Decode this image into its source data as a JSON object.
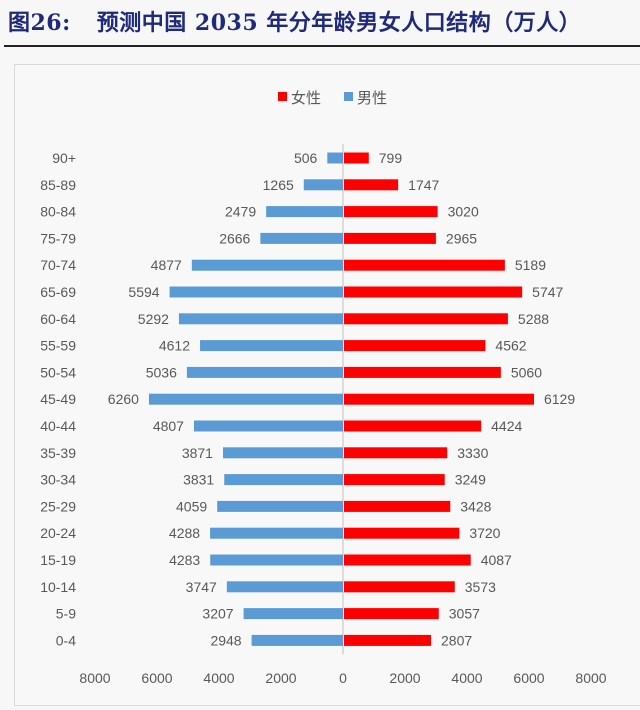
{
  "header": {
    "figure_label": "图26:",
    "title": "预测中国 2035 年分年龄男女人口结构（万人）"
  },
  "chart_data": {
    "type": "bar",
    "subtype": "population-pyramid",
    "title": "预测中国 2035 年分年龄男女人口结构（万人）",
    "unit": "万人",
    "categories": [
      "90+",
      "85-89",
      "80-84",
      "75-79",
      "70-74",
      "65-69",
      "60-64",
      "55-59",
      "50-54",
      "45-49",
      "40-44",
      "35-39",
      "30-34",
      "25-29",
      "20-24",
      "15-19",
      "10-14",
      "5-9",
      "0-4"
    ],
    "series": [
      {
        "name": "女性",
        "color": "#ff0000",
        "side": "right",
        "values": [
          799,
          1747,
          3020,
          2965,
          5189,
          5747,
          5288,
          4562,
          5060,
          6129,
          4424,
          3330,
          3249,
          3428,
          3720,
          4087,
          3573,
          3057,
          2807
        ]
      },
      {
        "name": "男性",
        "color": "#5b9bd5",
        "side": "left",
        "values": [
          506,
          1265,
          2479,
          2666,
          4877,
          5594,
          5292,
          4612,
          5036,
          6260,
          4807,
          3871,
          3831,
          4059,
          4288,
          4283,
          3747,
          3207,
          2948
        ]
      }
    ],
    "legend": [
      "女性",
      "男性"
    ],
    "legend_position": "top-center",
    "x_ticks": [
      "8000",
      "6000",
      "4000",
      "2000",
      "0",
      "2000",
      "4000",
      "6000",
      "8000"
    ],
    "xlim": [
      -8000,
      8000
    ],
    "xlabel": "",
    "ylabel": "",
    "grid": false
  }
}
